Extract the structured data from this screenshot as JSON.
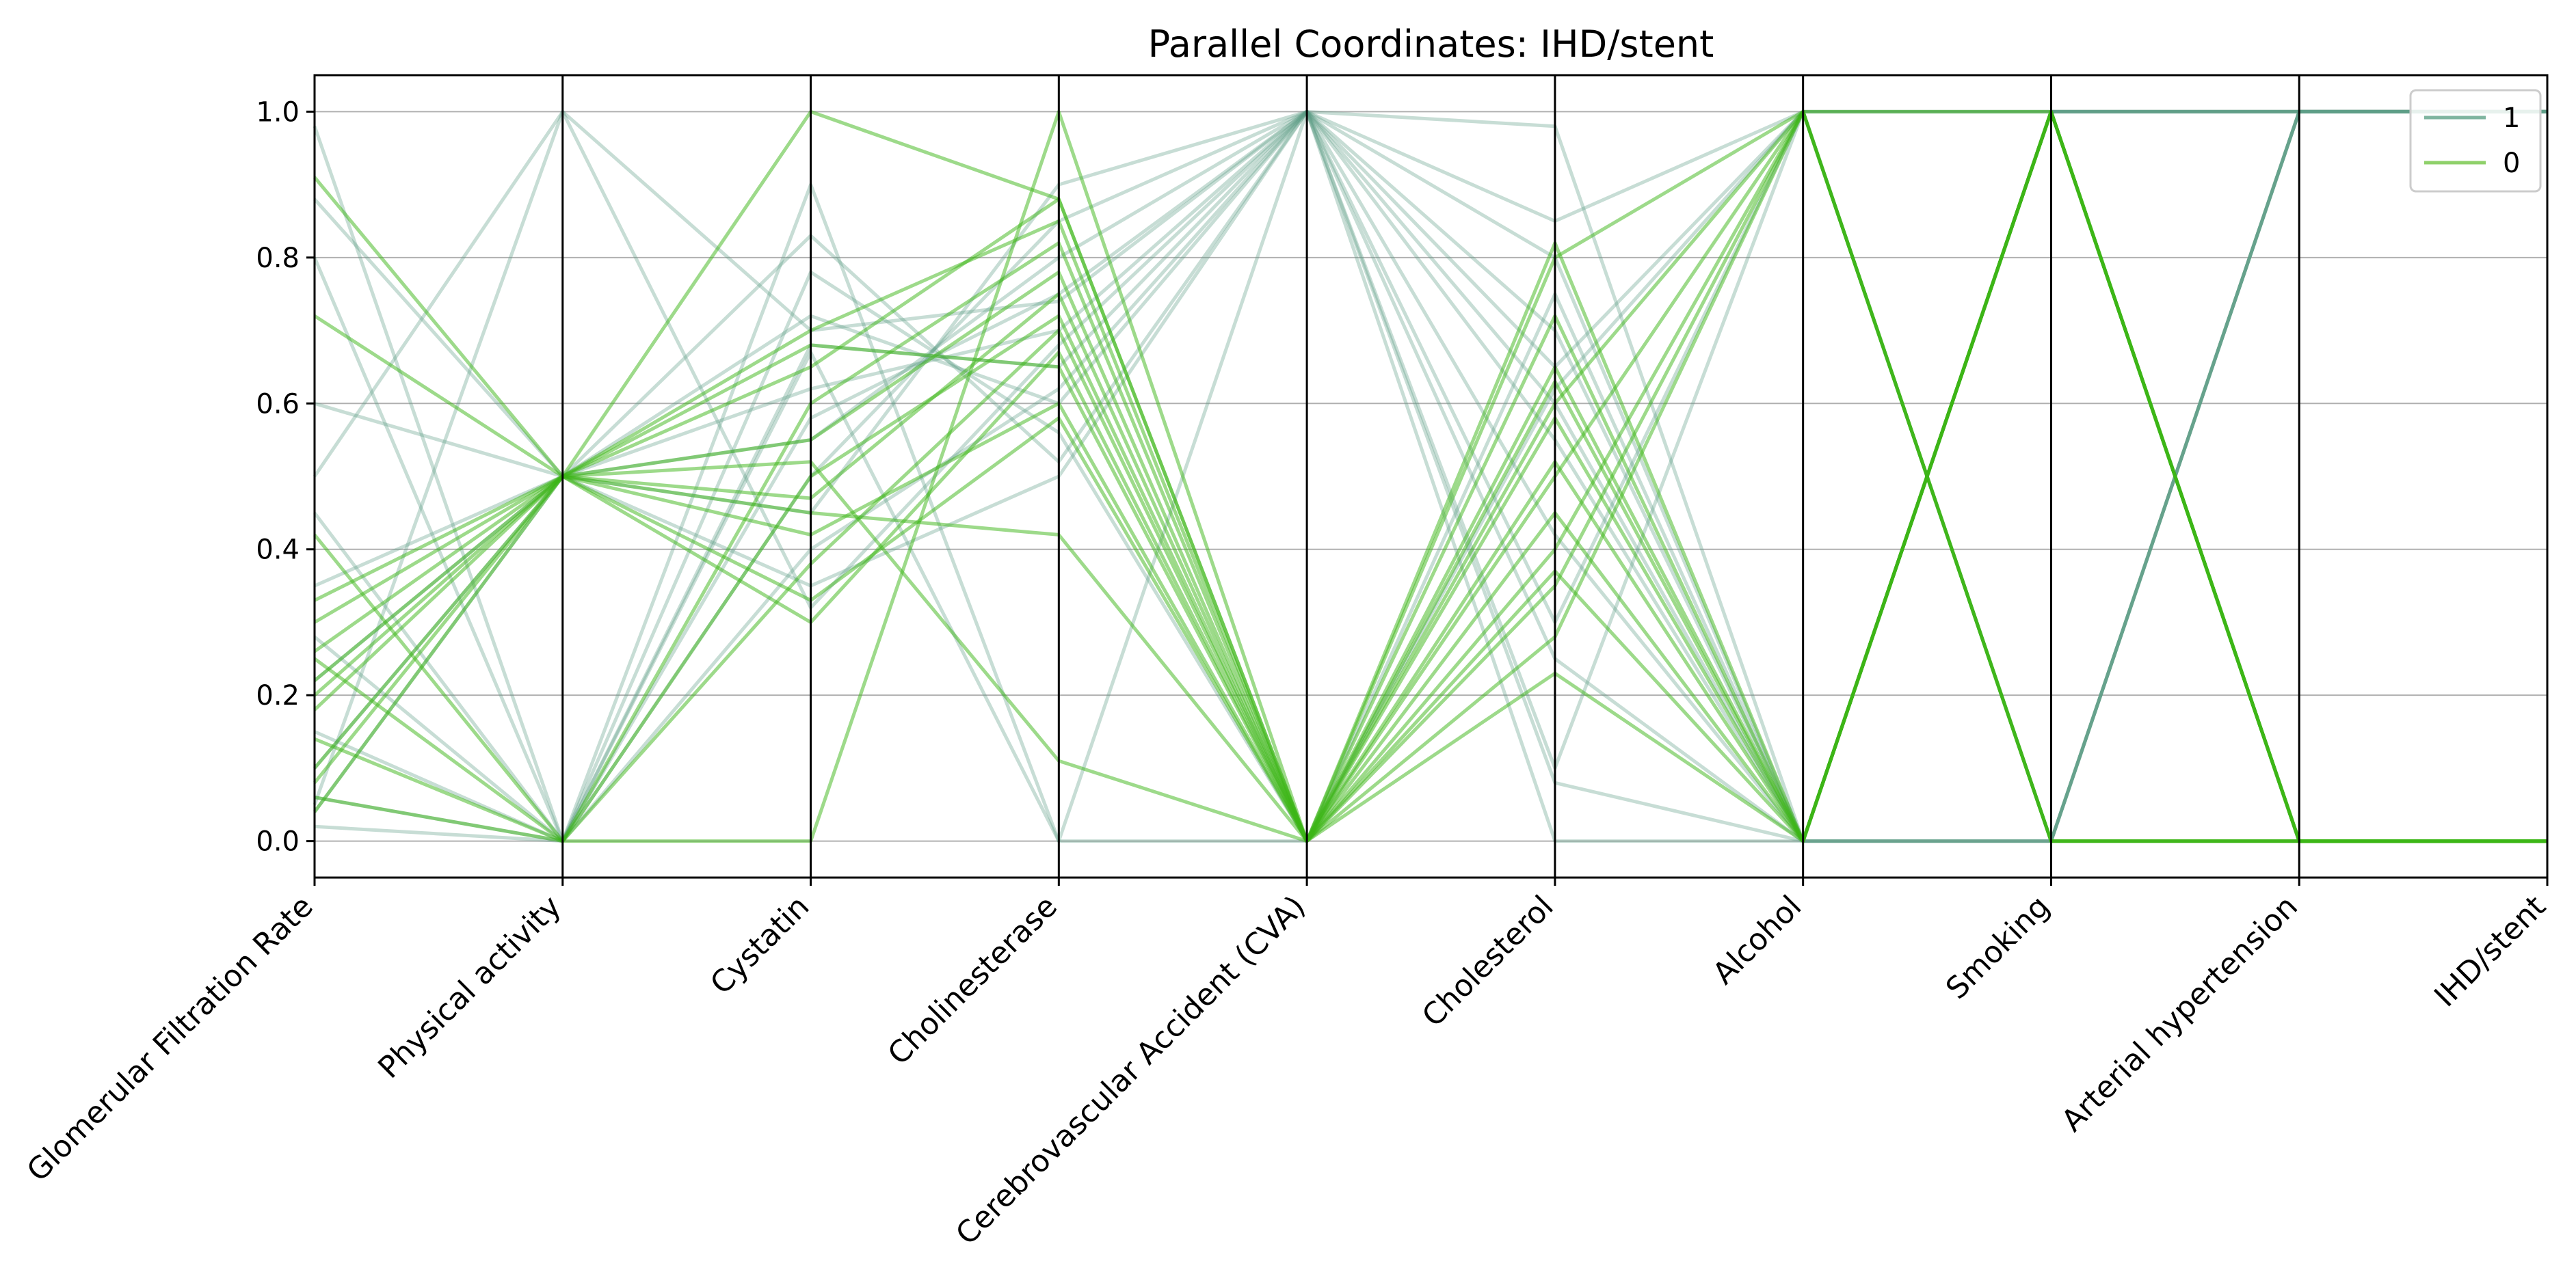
{
  "chart_data": {
    "type": "parallel_coordinates",
    "title": "Parallel Coordinates: IHD/stent",
    "class_column": "IHD/stent",
    "axes": [
      "Glomerular Filtration Rate",
      "Physical activity",
      "Cystatin",
      "Cholinesterase",
      "Cerebrovascular Accident (CVA)",
      "Cholesterol",
      "Alcohol",
      "Smoking",
      "Arterial hypertension",
      "IHD/stent"
    ],
    "ylim": [
      -0.05,
      1.05
    ],
    "yticks": [
      0.0,
      0.2,
      0.4,
      0.6,
      0.8,
      1.0
    ],
    "ytick_labels": [
      "0.0",
      "0.2",
      "0.4",
      "0.6",
      "0.8",
      "1.0"
    ],
    "grid": true,
    "legend": {
      "location": "top-right",
      "entries": [
        {
          "label": "1",
          "color": "#7fb5a0"
        },
        {
          "label": "0",
          "color": "#8fd16a"
        }
      ]
    },
    "colors": {
      "class_1": "#5e9f86",
      "class_0": "#3cb516"
    },
    "series": [
      {
        "class": "1",
        "values": [
          0.98,
          0.0,
          0.9,
          0.0,
          1.0,
          0.0,
          0.0,
          0.0,
          1.0,
          1.0
        ]
      },
      {
        "class": "1",
        "values": [
          0.88,
          0.5,
          0.83,
          0.52,
          1.0,
          0.85,
          1.0,
          0.0,
          1.0,
          1.0
        ]
      },
      {
        "class": "1",
        "values": [
          0.8,
          0.0,
          0.78,
          0.56,
          0.0,
          0.75,
          0.0,
          0.0,
          1.0,
          1.0
        ]
      },
      {
        "class": "1",
        "values": [
          0.6,
          0.5,
          0.72,
          0.6,
          1.0,
          0.65,
          1.0,
          1.0,
          1.0,
          1.0
        ]
      },
      {
        "class": "1",
        "values": [
          0.45,
          0.0,
          0.68,
          0.65,
          1.0,
          0.8,
          0.0,
          1.0,
          1.0,
          1.0
        ]
      },
      {
        "class": "1",
        "values": [
          0.35,
          0.5,
          0.62,
          0.7,
          1.0,
          0.55,
          0.0,
          0.0,
          1.0,
          1.0
        ]
      },
      {
        "class": "1",
        "values": [
          0.28,
          0.0,
          0.58,
          0.75,
          1.0,
          0.98,
          0.0,
          1.0,
          1.0,
          1.0
        ]
      },
      {
        "class": "1",
        "values": [
          0.22,
          0.5,
          0.55,
          0.8,
          1.0,
          0.3,
          1.0,
          0.0,
          1.0,
          1.0
        ]
      },
      {
        "class": "1",
        "values": [
          0.15,
          0.0,
          0.5,
          0.85,
          1.0,
          0.42,
          0.0,
          1.0,
          1.0,
          1.0
        ]
      },
      {
        "class": "1",
        "values": [
          0.1,
          0.5,
          0.45,
          0.9,
          1.0,
          0.25,
          0.0,
          0.0,
          1.0,
          1.0
        ]
      },
      {
        "class": "1",
        "values": [
          0.06,
          0.0,
          0.4,
          0.62,
          1.0,
          0.1,
          1.0,
          1.0,
          1.0,
          1.0
        ]
      },
      {
        "class": "1",
        "values": [
          0.04,
          0.5,
          0.35,
          0.5,
          1.0,
          0.08,
          0.0,
          0.0,
          1.0,
          1.0
        ]
      },
      {
        "class": "1",
        "values": [
          0.02,
          0.0,
          0.67,
          0.0,
          0.0,
          0.62,
          1.0,
          1.0,
          1.0,
          1.0
        ]
      },
      {
        "class": "1",
        "values": [
          0.5,
          1.0,
          0.32,
          0.68,
          1.0,
          0.7,
          0.0,
          1.0,
          1.0,
          1.0
        ]
      },
      {
        "class": "1",
        "values": [
          0.05,
          1.0,
          0.7,
          0.74,
          1.0,
          0.6,
          0.0,
          1.0,
          1.0,
          1.0
        ]
      },
      {
        "class": "0",
        "values": [
          0.91,
          0.5,
          0.7,
          0.85,
          0.0,
          0.6,
          1.0,
          0.0,
          0.0,
          0.0
        ]
      },
      {
        "class": "0",
        "values": [
          0.72,
          0.5,
          0.65,
          0.88,
          0.0,
          0.82,
          0.0,
          1.0,
          0.0,
          0.0
        ]
      },
      {
        "class": "0",
        "values": [
          0.42,
          0.0,
          0.6,
          0.82,
          0.0,
          0.35,
          1.0,
          0.0,
          0.0,
          0.0
        ]
      },
      {
        "class": "0",
        "values": [
          0.33,
          0.5,
          0.55,
          0.78,
          0.0,
          0.45,
          0.0,
          1.0,
          0.0,
          0.0
        ]
      },
      {
        "class": "0",
        "values": [
          0.3,
          0.5,
          0.68,
          0.65,
          0.0,
          0.23,
          0.0,
          1.0,
          0.0,
          0.0
        ]
      },
      {
        "class": "0",
        "values": [
          0.25,
          0.0,
          0.5,
          0.72,
          0.0,
          0.28,
          1.0,
          0.0,
          0.0,
          0.0
        ]
      },
      {
        "class": "0",
        "values": [
          0.2,
          0.5,
          0.47,
          0.75,
          0.0,
          0.63,
          0.0,
          1.0,
          0.0,
          0.0
        ]
      },
      {
        "class": "0",
        "values": [
          0.18,
          0.5,
          0.42,
          0.6,
          0.0,
          0.8,
          1.0,
          0.0,
          0.0,
          0.0
        ]
      },
      {
        "class": "0",
        "values": [
          0.14,
          0.0,
          0.38,
          0.7,
          0.0,
          0.52,
          0.0,
          1.0,
          0.0,
          0.0
        ]
      },
      {
        "class": "0",
        "values": [
          0.1,
          0.5,
          0.33,
          0.58,
          0.0,
          0.4,
          1.0,
          0.0,
          0.0,
          0.0
        ]
      },
      {
        "class": "0",
        "values": [
          0.08,
          0.5,
          1.0,
          0.88,
          0.0,
          0.72,
          0.0,
          1.0,
          0.0,
          0.0
        ]
      },
      {
        "class": "0",
        "values": [
          0.06,
          0.0,
          0.0,
          1.0,
          0.0,
          0.65,
          0.0,
          1.0,
          0.0,
          0.0
        ]
      },
      {
        "class": "0",
        "values": [
          0.22,
          0.5,
          0.52,
          0.11,
          0.0,
          0.5,
          1.0,
          1.0,
          0.0,
          0.0
        ]
      },
      {
        "class": "0",
        "values": [
          0.26,
          0.5,
          0.45,
          0.42,
          0.0,
          0.58,
          0.0,
          1.0,
          0.0,
          0.0
        ]
      },
      {
        "class": "0",
        "values": [
          0.04,
          0.5,
          0.3,
          0.67,
          0.0,
          0.37,
          0.0,
          1.0,
          0.0,
          0.0
        ]
      }
    ]
  }
}
